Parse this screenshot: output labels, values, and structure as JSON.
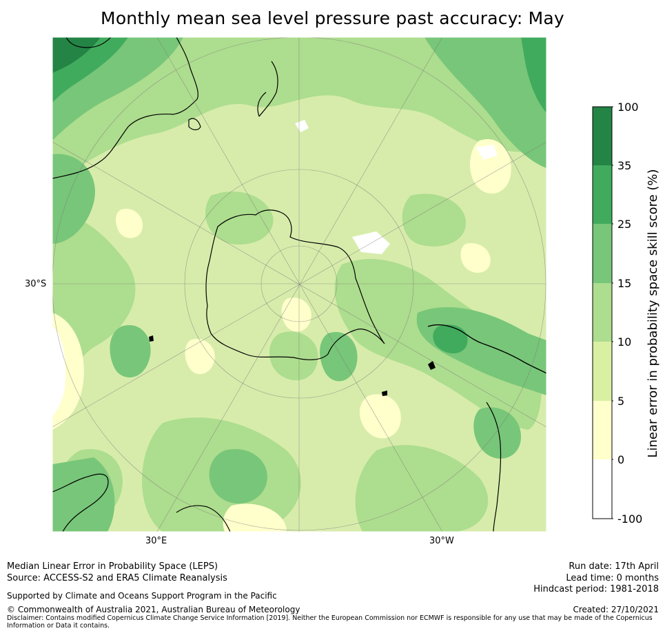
{
  "title": "Monthly mean sea level pressure past accuracy: May",
  "map": {
    "lat_labels": [
      "30°S"
    ],
    "lon_labels": [
      "30°E",
      "30°W"
    ],
    "projection": "south-polar-stereographic",
    "colors": {
      "land_outline": "#000000",
      "grid": "#7a7a7a",
      "dominant_fill": "#d7ecab"
    }
  },
  "colorbar": {
    "label": "Linear error in probability space skill score (%)",
    "ticks": [
      "100",
      "35",
      "25",
      "15",
      "10",
      "5",
      "0",
      "-100"
    ],
    "bins": [
      {
        "range": "35 to 100",
        "color": "#238445"
      },
      {
        "range": "25 to 35",
        "color": "#41ab5d"
      },
      {
        "range": "15 to 25",
        "color": "#78c679"
      },
      {
        "range": "10 to 15",
        "color": "#addd8e"
      },
      {
        "range": "5 to 10",
        "color": "#d9f0a3"
      },
      {
        "range": "0 to 5",
        "color": "#ffffcc"
      },
      {
        "range": "-100 to 0",
        "color": "#ffffff"
      }
    ]
  },
  "footer": {
    "left_line1": "Median Linear Error in Probability Space (LEPS)",
    "left_line2": "Source: ACCESS-S2 and ERA5 Climate Reanalysis",
    "supported": "Supported by Climate and Oceans Support Program in the Pacific",
    "copyright": "© Commonwealth of Australia 2021, Australian Bureau of Meteorology",
    "disclaimer": "Disclaimer: Contains modified Copernicus Climate Change Service Information [2019]. Neither the European Commission nor ECMWF is responsible for any use that may be made of the Copernicus Information or Data it contains.",
    "run_date": "Run date: 17th April",
    "lead_time": "Lead time: 0 months",
    "hindcast": "Hindcast period: 1981-2018",
    "created": "Created: 27/10/2021"
  }
}
